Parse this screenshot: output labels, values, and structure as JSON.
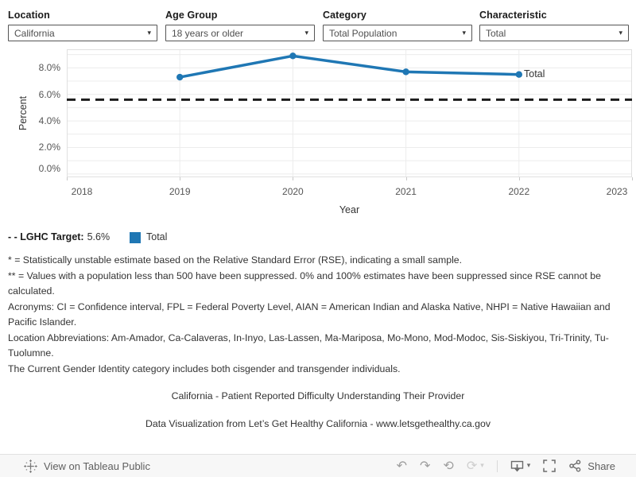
{
  "filters": {
    "items": [
      {
        "label": "Location",
        "value": "California"
      },
      {
        "label": "Age Group",
        "value": "18 years or older"
      },
      {
        "label": "Category",
        "value": "Total Population"
      },
      {
        "label": "Characteristic",
        "value": "Total"
      }
    ]
  },
  "chart_data": {
    "type": "line",
    "title": "",
    "xlabel": "Year",
    "ylabel": "Percent",
    "x": [
      2019,
      2020,
      2021,
      2022
    ],
    "series": [
      {
        "name": "Total",
        "values": [
          7.3,
          8.9,
          7.7,
          7.5
        ],
        "color": "#1f77b4"
      }
    ],
    "reference_line": {
      "name": "LGHC Target",
      "value": 5.6,
      "style": "dashed",
      "color": "#1c1c1c"
    },
    "xlim": [
      2018,
      2023
    ],
    "ylim": [
      0,
      9.4
    ],
    "xticks": [
      {
        "value": 2018,
        "label": "2018"
      },
      {
        "value": 2019,
        "label": "2019"
      },
      {
        "value": 2020,
        "label": "2020"
      },
      {
        "value": 2021,
        "label": "2021"
      },
      {
        "value": 2022,
        "label": "2022"
      },
      {
        "value": 2023,
        "label": "2023"
      }
    ],
    "yticks": [
      {
        "value": 0,
        "label": "0.0%"
      },
      {
        "value": 2,
        "label": "2.0%"
      },
      {
        "value": 4,
        "label": "4.0%"
      },
      {
        "value": 6,
        "label": "6.0%"
      },
      {
        "value": 8,
        "label": "8.0%"
      }
    ],
    "grid": true,
    "minor_grid_step_pct": 1,
    "end_label": "Total",
    "legend_position": "bottom-left"
  },
  "legend": {
    "target_label": "- - LGHC Target:",
    "target_value": "5.6%",
    "series_label": "Total",
    "series_color": "#1f77b4"
  },
  "footnotes": [
    "* = Statistically unstable estimate based on the Relative Standard Error (RSE), indicating a small sample.",
    "** = Values with a population less than 500 have been suppressed. 0% and 100% estimates have been suppressed since RSE cannot be calculated.",
    "Acronyms: CI = Confidence interval, FPL = Federal Poverty Level, AIAN = American Indian and Alaska Native, NHPI = Native Hawaiian and Pacific Islander.",
    "Location Abbreviations: Am-Amador, Ca-Calaveras, In-Inyo, Las-Lassen, Ma-Mariposa, Mo-Mono, Mod-Modoc, Sis-Siskiyou, Tri-Trinity, Tu-Tuolumne.",
    "The Current Gender Identity category includes both cisgender and transgender individuals."
  ],
  "captions": {
    "title": "California - Patient Reported Difficulty Understanding Their Provider",
    "source": "Data Visualization from Let’s Get Healthy California - www.letsgethealthy.ca.gov"
  },
  "toolbar": {
    "view_label": "View on Tableau Public",
    "share_label": "Share",
    "icons": [
      "tableau-logo",
      "undo",
      "redo",
      "revert",
      "refresh",
      "caret-down",
      "download",
      "caret-down",
      "fullscreen",
      "share"
    ],
    "undo_glyph": "↶",
    "redo_glyph": "↷",
    "revert_glyph": "⟲",
    "refresh_glyph": "⟳",
    "caret_glyph": "▾"
  },
  "colors": {
    "accent": "#1f77b4",
    "grid": "#ececec",
    "plot_border": "#e0e0e0",
    "text": "#333333",
    "muted_text": "#555555",
    "toolbar_bg": "#f7f7f7"
  }
}
